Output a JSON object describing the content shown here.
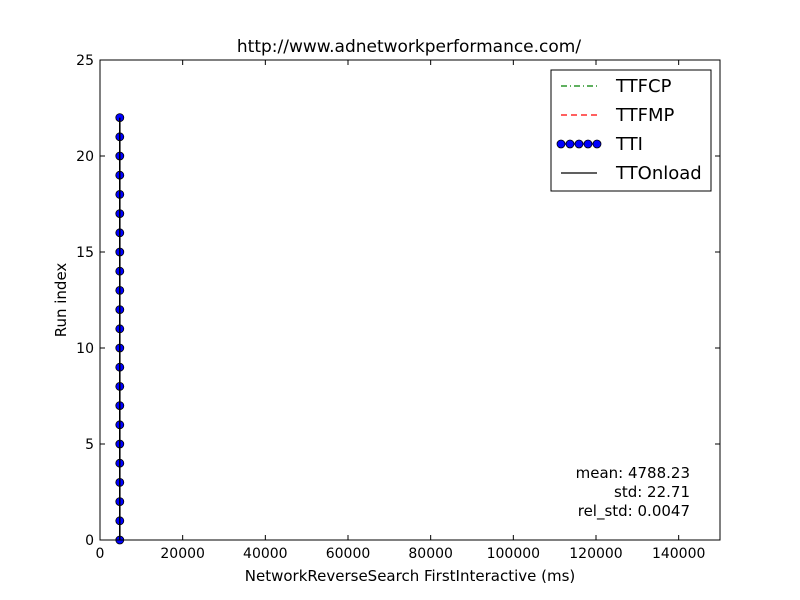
{
  "chart_data": {
    "type": "line",
    "title": "http://www.adnetworkperformance.com/",
    "xlabel": "NetworkReverseSearch FirstInteractive (ms)",
    "ylabel": "Run index",
    "xlim": [
      0,
      150000
    ],
    "ylim": [
      0,
      25
    ],
    "xticks": [
      0,
      20000,
      40000,
      60000,
      80000,
      100000,
      120000,
      140000
    ],
    "yticks": [
      0,
      5,
      10,
      15,
      20,
      25
    ],
    "grid": false,
    "legend_position": "top-right",
    "series": [
      {
        "name": "TTFCP",
        "style": "dash-dot",
        "color": "#008000",
        "x": [],
        "y": []
      },
      {
        "name": "TTFMP",
        "style": "dashed",
        "color": "#ff0000",
        "x": [],
        "y": []
      },
      {
        "name": "TTI",
        "style": "line-circle-markers",
        "color": "#0000ff",
        "x": [
          4788,
          4788,
          4788,
          4788,
          4788,
          4788,
          4788,
          4788,
          4788,
          4788,
          4788,
          4788,
          4788,
          4788,
          4788,
          4788,
          4788,
          4788,
          4788,
          4788,
          4788,
          4788,
          4788
        ],
        "y": [
          0,
          1,
          2,
          3,
          4,
          5,
          6,
          7,
          8,
          9,
          10,
          11,
          12,
          13,
          14,
          15,
          16,
          17,
          18,
          19,
          20,
          21,
          22
        ]
      },
      {
        "name": "TTOnload",
        "style": "solid",
        "color": "#000000",
        "x": [
          4788,
          4788
        ],
        "y": [
          0,
          22
        ]
      }
    ],
    "annotations": [
      "mean: 4788.23",
      "std: 22.71",
      "rel_std: 0.0047"
    ]
  }
}
